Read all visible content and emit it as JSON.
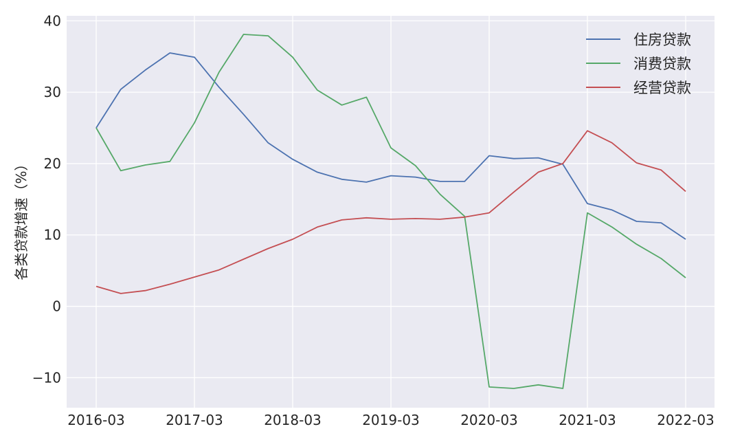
{
  "chart_data": {
    "type": "line",
    "ylabel": "各类贷款增速（%）",
    "xlabel": "",
    "ylim": [
      -14.2,
      40.7
    ],
    "grid": true,
    "legend_placement": "top-right",
    "x_tick_labels": [
      "2016-03",
      "2017-03",
      "2018-03",
      "2019-03",
      "2020-03",
      "2021-03",
      "2022-03"
    ],
    "y_ticks": [
      -10,
      0,
      10,
      20,
      30,
      40
    ],
    "y_tick_labels": [
      "−10",
      "0",
      "10",
      "20",
      "30",
      "40"
    ],
    "x": [
      "2016-03",
      "2016-06",
      "2016-09",
      "2016-12",
      "2017-03",
      "2017-06",
      "2017-09",
      "2017-12",
      "2018-03",
      "2018-06",
      "2018-09",
      "2018-12",
      "2019-03",
      "2019-06",
      "2019-09",
      "2019-12",
      "2020-03",
      "2020-06",
      "2020-09",
      "2020-12",
      "2021-03",
      "2021-06",
      "2021-09",
      "2021-12",
      "2022-03"
    ],
    "series": [
      {
        "name": "住房贷款",
        "color": "#4c72b0",
        "values": [
          25.0,
          30.4,
          33.1,
          35.5,
          34.9,
          30.7,
          26.9,
          22.9,
          20.6,
          18.8,
          17.8,
          17.4,
          18.3,
          18.1,
          17.5,
          17.5,
          21.1,
          20.7,
          20.8,
          19.9,
          14.4,
          13.5,
          11.9,
          11.7,
          9.4
        ]
      },
      {
        "name": "消费贷款",
        "color": "#55a868",
        "values": [
          25.0,
          19.0,
          19.8,
          20.3,
          25.7,
          32.8,
          38.1,
          37.9,
          34.9,
          30.3,
          28.2,
          29.3,
          22.2,
          19.7,
          15.7,
          12.6,
          -11.3,
          -11.5,
          -11.0,
          -11.5,
          13.1,
          11.1,
          8.7,
          6.7,
          4.0
        ]
      },
      {
        "name": "经营贷款",
        "color": "#c44e52",
        "values": [
          2.8,
          1.8,
          2.2,
          3.1,
          4.1,
          5.1,
          6.6,
          8.1,
          9.4,
          11.1,
          12.1,
          12.4,
          12.2,
          12.3,
          12.2,
          12.5,
          13.1,
          16.0,
          18.8,
          20.0,
          24.6,
          22.9,
          20.1,
          19.1,
          16.1
        ]
      }
    ]
  }
}
